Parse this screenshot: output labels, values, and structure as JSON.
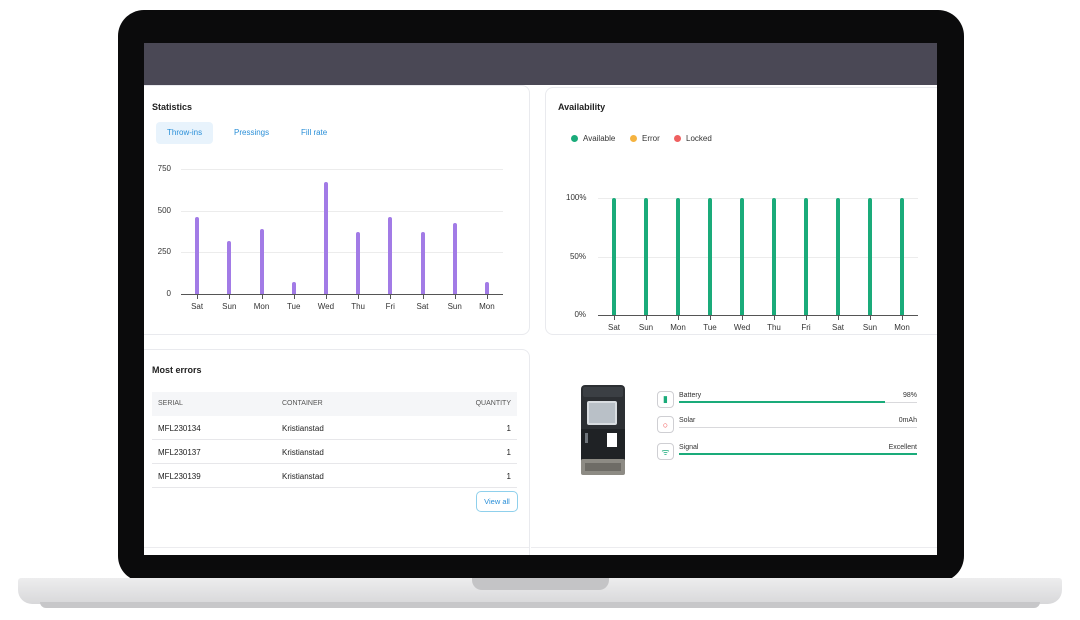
{
  "statistics": {
    "title": "Statistics",
    "tabs": [
      {
        "label": "Throw-ins",
        "active": true
      },
      {
        "label": "Pressings",
        "active": false
      },
      {
        "label": "Fill rate",
        "active": false
      }
    ]
  },
  "availability": {
    "title": "Availability",
    "legend": [
      {
        "label": "Available",
        "color": "#1aab7a"
      },
      {
        "label": "Error",
        "color": "#f5b340"
      },
      {
        "label": "Locked",
        "color": "#ef6060"
      }
    ]
  },
  "chart_data": [
    {
      "type": "bar",
      "categories": [
        "Sat",
        "Sun",
        "Mon",
        "Tue",
        "Wed",
        "Thu",
        "Fri",
        "Sat",
        "Sun",
        "Mon"
      ],
      "values": [
        460,
        320,
        390,
        70,
        670,
        370,
        460,
        375,
        425,
        70
      ],
      "y_ticks": [
        "0",
        "250",
        "500",
        "750"
      ],
      "ylim": [
        0,
        750
      ],
      "color": "#a27be6",
      "grid": true
    },
    {
      "type": "bar",
      "categories": [
        "Sat",
        "Sun",
        "Mon",
        "Tue",
        "Wed",
        "Thu",
        "Fri",
        "Sat",
        "Sun",
        "Mon"
      ],
      "series": [
        {
          "name": "Available",
          "values": [
            100,
            100,
            100,
            100,
            100,
            100,
            100,
            100,
            100,
            100
          ]
        }
      ],
      "y_ticks": [
        "0%",
        "50%",
        "100%"
      ],
      "ylim": [
        0,
        100
      ],
      "color": "#1aab7a",
      "grid": true,
      "legend": "top-left"
    }
  ],
  "errors": {
    "title": "Most errors",
    "columns": [
      "SERIAL",
      "CONTAINER",
      "QUANTITY"
    ],
    "rows": [
      {
        "serial": "MFL230134",
        "container": "Kristianstad",
        "quantity": "1"
      },
      {
        "serial": "MFL230137",
        "container": "Kristianstad",
        "quantity": "1"
      },
      {
        "serial": "MFL230139",
        "container": "Kristianstad",
        "quantity": "1"
      }
    ],
    "view_all_label": "View all"
  },
  "device": {
    "status": [
      {
        "label": "Battery",
        "value": "98%",
        "level": 0.98,
        "icon": "battery-icon"
      },
      {
        "label": "Solar",
        "value": "0mAh",
        "level": 0,
        "icon": "solar-icon"
      },
      {
        "label": "Signal",
        "value": "Excellent",
        "level": 1.0,
        "icon": "signal-icon"
      }
    ]
  }
}
